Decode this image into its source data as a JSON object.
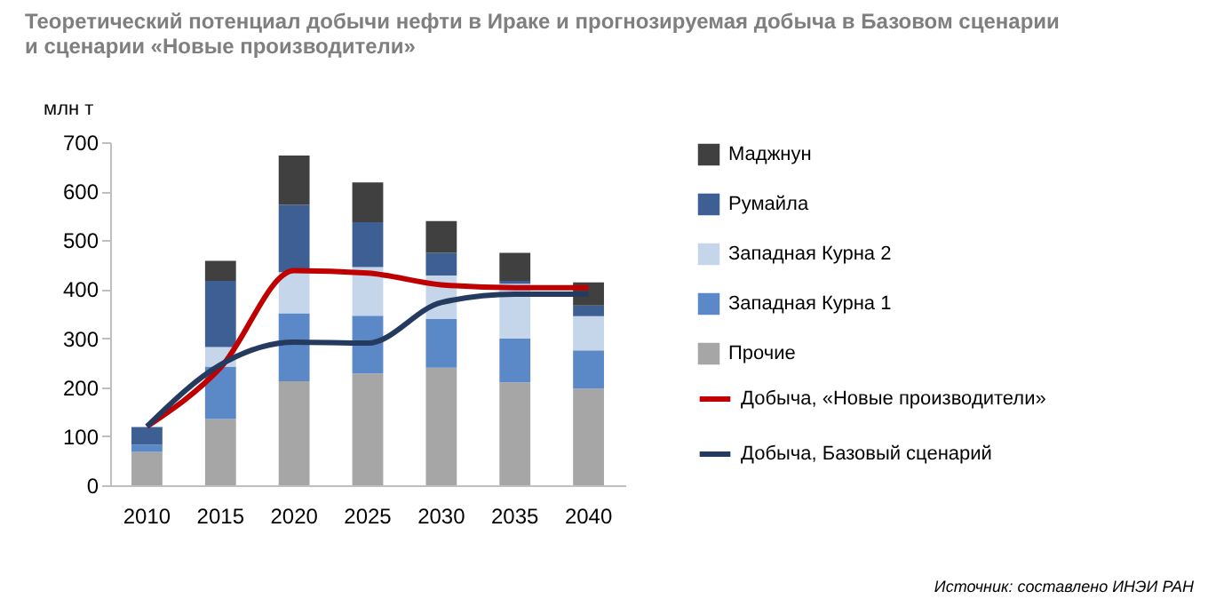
{
  "chart_data": {
    "type": "bar",
    "stacked": true,
    "title": "Теоретический потенциал добычи нефти в Ираке и прогнозируемая добыча в Базовом сценарии и сценарии «Новые производители»",
    "ylabel": "млн т",
    "categories": [
      "2010",
      "2015",
      "2020",
      "2025",
      "2030",
      "2035",
      "2040"
    ],
    "ylim": [
      0,
      700
    ],
    "yticks": [
      0,
      100,
      200,
      300,
      400,
      500,
      600,
      700
    ],
    "grid": false,
    "legend": "right",
    "series": [
      {
        "name": "Прочие",
        "color": "#a6a6a6",
        "values": [
          68,
          135,
          212,
          228,
          240,
          210,
          197
        ]
      },
      {
        "name": "Западная Курна 1",
        "color": "#5b88c6",
        "values": [
          15,
          107,
          139,
          118,
          99,
          89,
          78
        ]
      },
      {
        "name": "Западная Курна 2",
        "color": "#c5d5ea",
        "values": [
          null,
          40,
          84,
          99,
          89,
          112,
          70
        ]
      },
      {
        "name": "Румайла",
        "color": "#3e5f93",
        "values": [
          36,
          135,
          137,
          92,
          46,
          6,
          22
        ]
      },
      {
        "name": "Маджнун",
        "color": "#404040",
        "values": [
          0,
          41,
          101,
          81,
          65,
          57,
          47
        ]
      },
      {
        "name": "Добыча, «Новые производители»",
        "type": "line",
        "color": "#c00000",
        "values": [
          120,
          240,
          438,
          433,
          409,
          403,
          403
        ]
      },
      {
        "name": "Добыча, Базовый сценарий",
        "type": "line",
        "color": "#243a5e",
        "values": [
          120,
          246,
          292,
          290,
          373,
          390,
          390
        ]
      }
    ],
    "annotations": [
      "Источник: составлено ИНЭИ РАН"
    ]
  }
}
